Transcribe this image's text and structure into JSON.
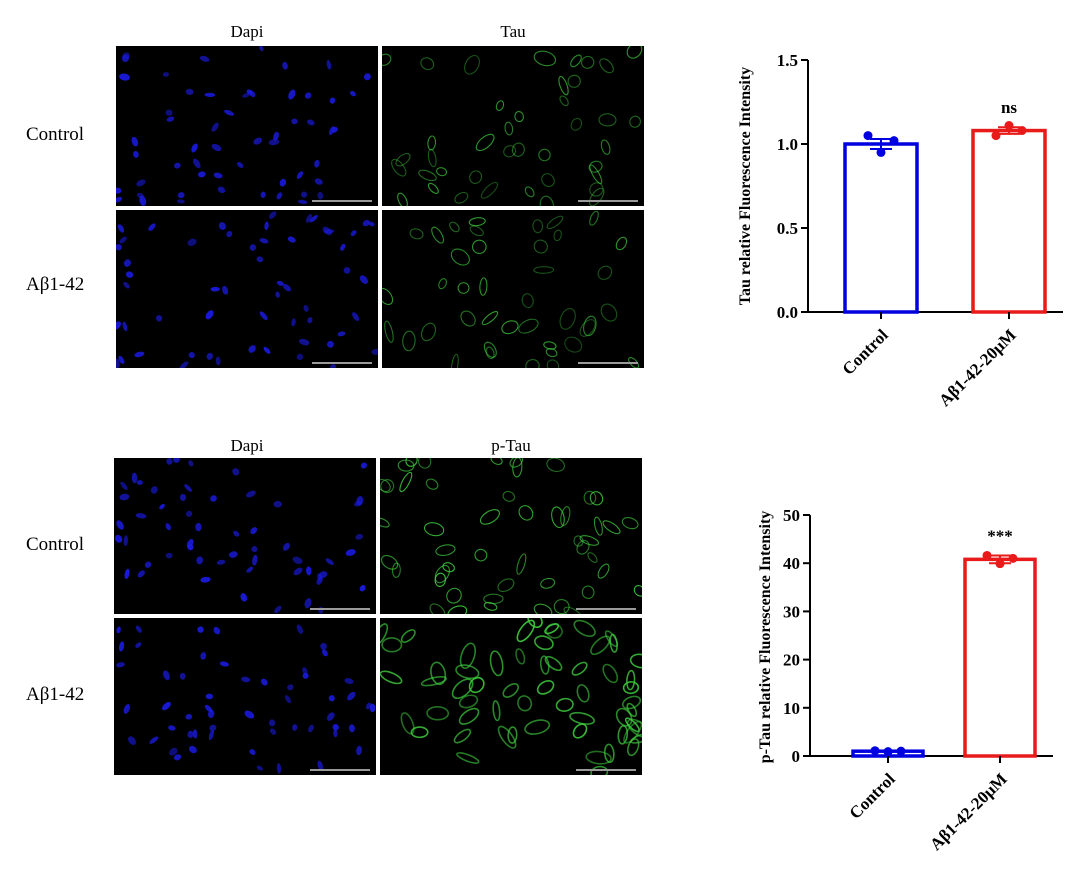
{
  "micrographs": [
    {
      "columns": [
        "Dapi",
        "Tau"
      ],
      "rows": [
        "Control",
        "Aβ1-42"
      ]
    },
    {
      "columns": [
        "Dapi",
        "p-Tau"
      ],
      "rows": [
        "Control",
        "Aβ1-42"
      ]
    }
  ],
  "colors": {
    "dapi": "#1a1adf",
    "tau": "#3fcf3f",
    "control": "#0000e0",
    "treated": "#e81a1a"
  },
  "chart_data": [
    {
      "type": "bar",
      "categories": [
        "Control",
        "Aβ1-42-20μM"
      ],
      "values": [
        1.0,
        1.08
      ],
      "errors": [
        0.03,
        0.02
      ],
      "points": [
        [
          1.05,
          0.95,
          1.02
        ],
        [
          1.05,
          1.11,
          1.08
        ]
      ],
      "ylabel": "Tau relative Fluorescence Intensity",
      "ylim": [
        0,
        1.5
      ],
      "yticks": [
        0.0,
        0.5,
        1.0,
        1.5
      ],
      "ytick_labels": [
        "0.0",
        "0.5",
        "1.0",
        "1.5"
      ],
      "annotation": "ns"
    },
    {
      "type": "bar",
      "categories": [
        "Control",
        "Aβ1-42-20μM"
      ],
      "values": [
        1.0,
        40.8
      ],
      "errors": [
        0.1,
        0.8
      ],
      "points": [
        [
          1.1,
          0.9,
          1.0
        ],
        [
          41.6,
          39.9,
          41.0
        ]
      ],
      "ylabel": "p-Tau relative Fluorescence Intensity",
      "ylim": [
        0,
        50
      ],
      "yticks": [
        0,
        10,
        20,
        30,
        40,
        50
      ],
      "ytick_labels": [
        "0",
        "10",
        "20",
        "30",
        "40",
        "50"
      ],
      "annotation": "***"
    }
  ]
}
